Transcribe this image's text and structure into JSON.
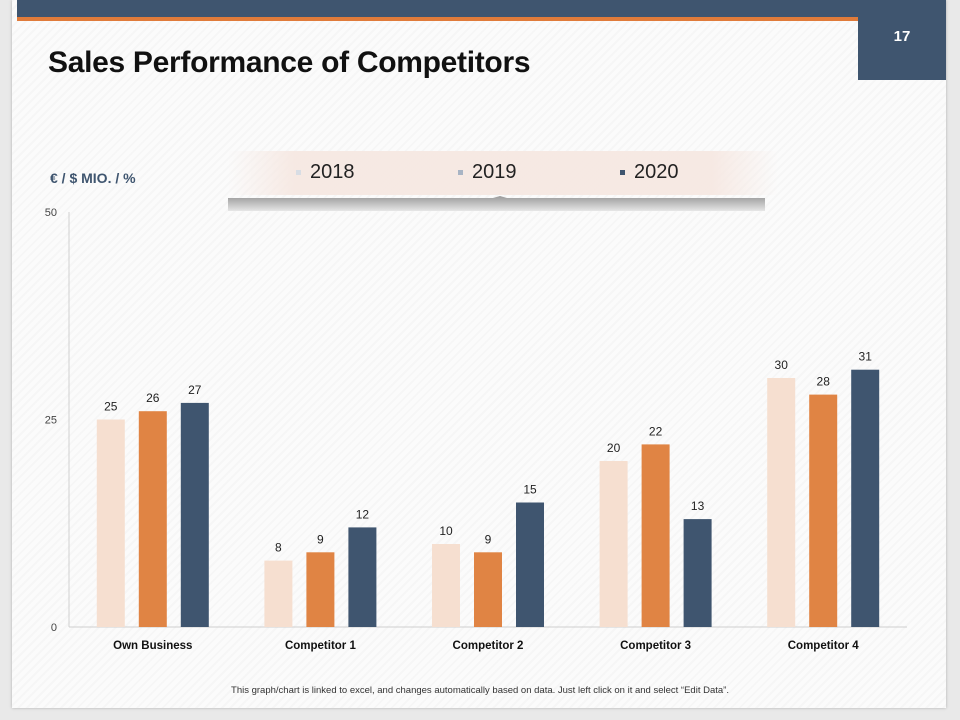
{
  "slide": {
    "title": "Sales Performance of Competitors",
    "page_number": "17",
    "unit_label": "€ / $ MIO. / %",
    "footnote": "This graph/chart is linked to excel, and changes automatically based on data. Just left click on it and select “Edit Data”."
  },
  "colors": {
    "header": "#3f556f",
    "accent": "#e07b3a",
    "s2018": "#f6dfd0",
    "s2019": "#e08444",
    "s2020": "#3f556f"
  },
  "chart_data": {
    "type": "bar",
    "title": "Sales Performance of Competitors",
    "xlabel": "",
    "ylabel": "€ / $ MIO. / %",
    "ylim": [
      0,
      50
    ],
    "yticks": [
      0,
      25,
      50
    ],
    "grid": false,
    "legend_position": "top-center",
    "categories": [
      "Own Business",
      "Competitor 1",
      "Competitor 2",
      "Competitor 3",
      "Competitor 4"
    ],
    "series": [
      {
        "name": "2018",
        "values": [
          25,
          8,
          10,
          20,
          30
        ]
      },
      {
        "name": "2019",
        "values": [
          26,
          9,
          9,
          22,
          28
        ]
      },
      {
        "name": "2020",
        "values": [
          27,
          12,
          15,
          13,
          31
        ]
      }
    ]
  }
}
